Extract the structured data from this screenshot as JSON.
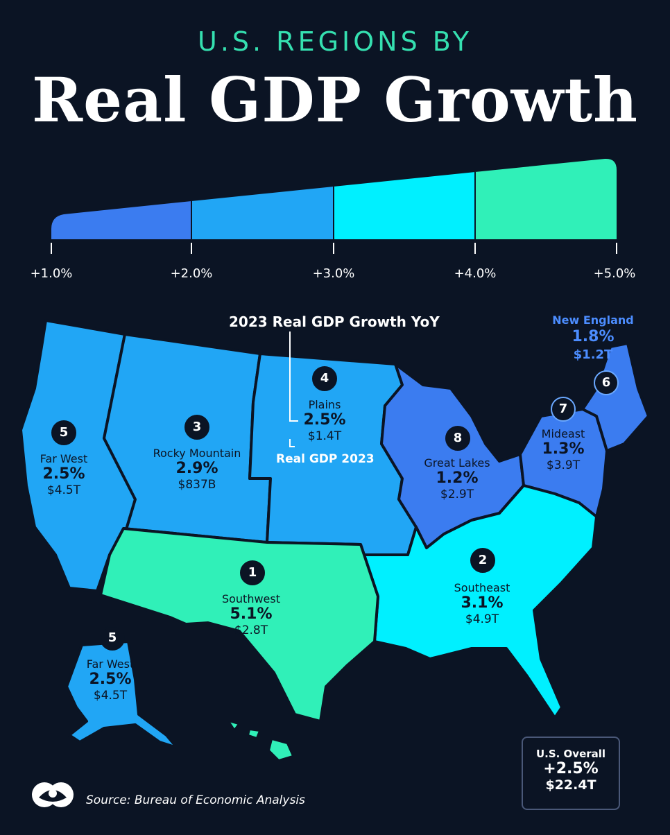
{
  "title": {
    "line1": "U.S. REGIONS BY",
    "line2": "Real GDP Growth"
  },
  "legend": {
    "ticks": [
      "+1.0%",
      "+2.0%",
      "+3.0%",
      "+4.0%",
      "+5.0%"
    ],
    "colors": [
      "#3b7cf0",
      "#21a6f5",
      "#00f0ff",
      "#30f0b8"
    ]
  },
  "callout": {
    "title": "2023 Real GDP Growth YoY",
    "real_gdp": "Real GDP 2023"
  },
  "regions": [
    {
      "rank": "1",
      "name": "Southwest",
      "growth": "5.1%",
      "gdp": "$2.8T",
      "color": "#30f0b8"
    },
    {
      "rank": "2",
      "name": "Southeast",
      "growth": "3.1%",
      "gdp": "$4.9T",
      "color": "#00f0ff"
    },
    {
      "rank": "3",
      "name": "Rocky Mountain",
      "growth": "2.9%",
      "gdp": "$837B",
      "color": "#21a6f5"
    },
    {
      "rank": "4",
      "name": "Plains",
      "growth": "2.5%",
      "gdp": "$1.4T",
      "color": "#21a6f5"
    },
    {
      "rank": "5",
      "name": "Far West",
      "growth": "2.5%",
      "gdp": "$4.5T",
      "color": "#21a6f5"
    },
    {
      "rank": "6",
      "name": "New England",
      "growth": "1.8%",
      "gdp": "$1.2T",
      "color": "#3b7cf0"
    },
    {
      "rank": "7",
      "name": "Mideast",
      "growth": "1.3%",
      "gdp": "$3.9T",
      "color": "#3b7cf0"
    },
    {
      "rank": "8",
      "name": "Great Lakes",
      "growth": "1.2%",
      "gdp": "$2.9T",
      "color": "#3b7cf0"
    }
  ],
  "alaska": {
    "rank": "5",
    "name": "Far West",
    "growth": "2.5%",
    "gdp": "$4.5T"
  },
  "overall": {
    "label": "U.S. Overall",
    "growth": "+2.5%",
    "gdp": "$22.4T"
  },
  "source": "Source: Bureau of Economic Analysis"
}
